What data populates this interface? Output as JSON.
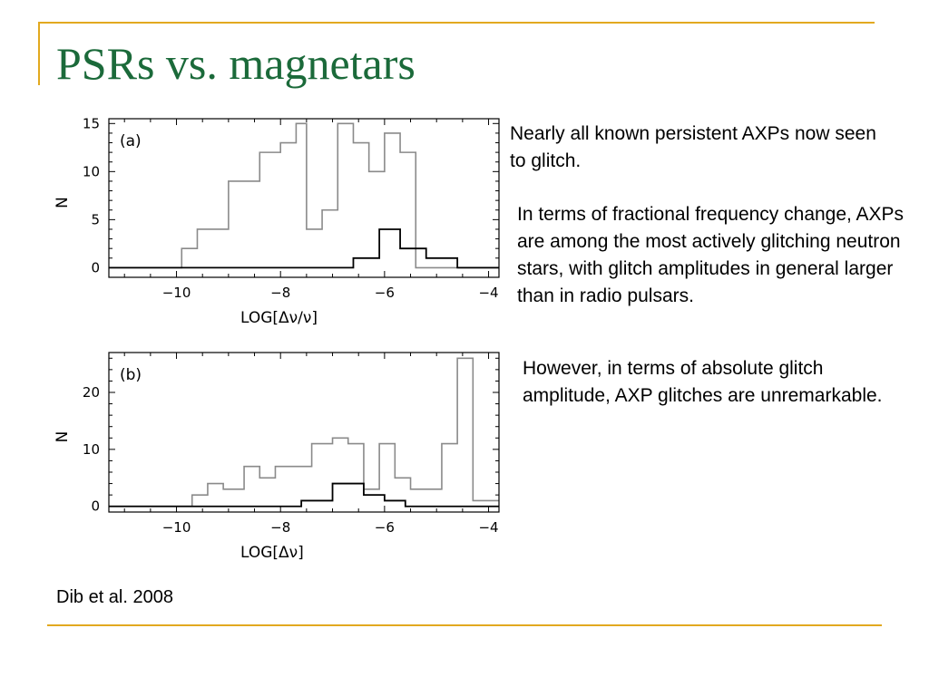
{
  "colors": {
    "accent_line": "#e2a91f",
    "title": "#1b6a3a",
    "series_outline": "#8a8a8a",
    "series_inner": "#000000"
  },
  "slide": {
    "title": "PSRs vs. magnetars",
    "bullets": [
      "Nearly all known persistent AXPs now seen to glitch.",
      "In terms of fractional frequency change, AXPs are among the most actively glitching neutron stars, with glitch amplitudes in general larger than in radio pulsars.",
      "However, in terms of absolute glitch amplitude, AXP glitches are unremarkable."
    ],
    "citation": "Dib et al. 2008"
  },
  "chart_data": [
    {
      "type": "histogram",
      "panel_label": "(a)",
      "xlabel": "LOG[Δν/ν]",
      "ylabel": "N",
      "xlim": [
        -11.3,
        -3.8
      ],
      "ylim": [
        -1,
        15.5
      ],
      "xticks": [
        -10,
        -8,
        -6,
        -4
      ],
      "yticks": [
        0,
        5,
        10,
        15
      ],
      "grid": false,
      "series": [
        {
          "style": "gray",
          "bin_edges": [
            -11.3,
            -9.9,
            -9.6,
            -9.0,
            -8.4,
            -8.0,
            -7.7,
            -7.5,
            -7.2,
            -6.9,
            -6.6,
            -6.3,
            -6.0,
            -5.7,
            -5.4,
            -3.8
          ],
          "values": [
            0,
            2,
            4,
            9,
            12,
            13,
            15,
            4,
            6,
            15,
            13,
            10,
            14,
            12,
            0
          ]
        },
        {
          "style": "black",
          "bin_edges": [
            -11.3,
            -6.6,
            -6.1,
            -5.7,
            -5.2,
            -4.6,
            -3.8
          ],
          "values": [
            0,
            1,
            4,
            2,
            1,
            0
          ]
        }
      ]
    },
    {
      "type": "histogram",
      "panel_label": "(b)",
      "xlabel": "LOG[Δν]",
      "ylabel": "N",
      "xlim": [
        -11.3,
        -3.8
      ],
      "ylim": [
        -1,
        27
      ],
      "xticks": [
        -10,
        -8,
        -6,
        -4
      ],
      "yticks": [
        0,
        10,
        20
      ],
      "grid": false,
      "series": [
        {
          "style": "gray",
          "bin_edges": [
            -11.3,
            -9.7,
            -9.4,
            -9.1,
            -8.7,
            -8.4,
            -8.1,
            -7.4,
            -7.0,
            -6.7,
            -6.4,
            -6.1,
            -5.8,
            -5.5,
            -4.9,
            -4.6,
            -4.3,
            -3.8
          ],
          "values": [
            0,
            2,
            4,
            3,
            7,
            5,
            7,
            11,
            12,
            11,
            3,
            11,
            5,
            3,
            11,
            26,
            1
          ]
        },
        {
          "style": "black",
          "bin_edges": [
            -11.3,
            -7.6,
            -7.0,
            -6.4,
            -6.0,
            -5.6,
            -3.8
          ],
          "values": [
            0,
            1,
            4,
            2,
            1,
            0
          ]
        }
      ]
    }
  ]
}
